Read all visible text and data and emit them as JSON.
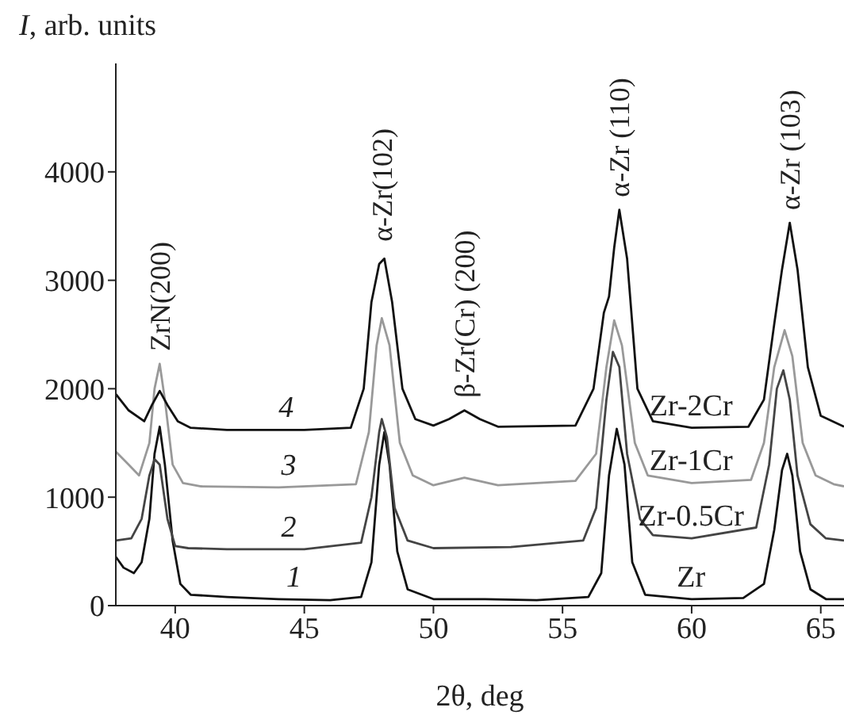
{
  "chart_data": {
    "type": "line",
    "xlabel": "2θ, deg",
    "ylabel": "I, arb. units",
    "xlim": [
      37.7,
      65.9
    ],
    "xticks": [
      40,
      45,
      50,
      55,
      60,
      65
    ],
    "ylim": [
      0,
      5000
    ],
    "yticks": [
      0,
      1000,
      2000,
      3000,
      4000
    ],
    "series": [
      {
        "name": "Zr",
        "color": "#111111",
        "x": [
          37.7,
          38.0,
          38.4,
          38.7,
          39.0,
          39.2,
          39.4,
          39.6,
          39.9,
          40.2,
          40.6,
          42,
          44,
          46,
          47.2,
          47.6,
          47.9,
          48.1,
          48.3,
          48.6,
          49.0,
          50,
          52,
          54,
          56.0,
          56.5,
          56.8,
          57.1,
          57.4,
          57.7,
          58.2,
          60,
          62,
          62.8,
          63.2,
          63.5,
          63.7,
          63.9,
          64.2,
          64.6,
          65.2,
          65.9
        ],
        "values": [
          450,
          350,
          300,
          400,
          800,
          1400,
          1650,
          1300,
          600,
          200,
          100,
          80,
          60,
          50,
          80,
          400,
          1300,
          1600,
          1300,
          500,
          150,
          60,
          60,
          50,
          80,
          300,
          1200,
          1630,
          1300,
          400,
          100,
          60,
          70,
          200,
          700,
          1250,
          1400,
          1200,
          500,
          150,
          60,
          60
        ]
      },
      {
        "name": "Zr-0.5Cr",
        "color": "#444444",
        "x": [
          37.7,
          38.3,
          38.7,
          39.0,
          39.2,
          39.4,
          39.7,
          40.0,
          40.5,
          42,
          45,
          47.2,
          47.6,
          47.9,
          48.0,
          48.2,
          48.5,
          49.0,
          50,
          53,
          55.8,
          56.3,
          56.7,
          56.95,
          57.2,
          57.5,
          58.0,
          58.5,
          60,
          62.5,
          63.0,
          63.3,
          63.55,
          63.8,
          64.1,
          64.6,
          65.2,
          65.9
        ],
        "values": [
          600,
          620,
          800,
          1200,
          1350,
          1300,
          800,
          550,
          530,
          520,
          520,
          580,
          1000,
          1600,
          1720,
          1550,
          900,
          600,
          530,
          540,
          600,
          900,
          1900,
          2340,
          2200,
          1400,
          800,
          650,
          620,
          720,
          1300,
          2000,
          2170,
          1900,
          1200,
          750,
          620,
          600
        ]
      },
      {
        "name": "Zr-1Cr",
        "color": "#999999",
        "x": [
          37.7,
          38.2,
          38.6,
          39.0,
          39.2,
          39.4,
          39.6,
          39.9,
          40.3,
          41,
          44,
          47.0,
          47.5,
          47.8,
          48.0,
          48.3,
          48.7,
          49.2,
          50,
          51.2,
          52.5,
          55.5,
          56.3,
          56.7,
          57.0,
          57.3,
          57.8,
          58.3,
          60,
          62.3,
          62.8,
          63.2,
          63.6,
          63.9,
          64.3,
          64.8,
          65.5,
          65.9
        ],
        "values": [
          1420,
          1300,
          1200,
          1500,
          2000,
          2230,
          1900,
          1300,
          1130,
          1100,
          1090,
          1120,
          1600,
          2400,
          2650,
          2400,
          1500,
          1200,
          1110,
          1180,
          1110,
          1150,
          1400,
          2200,
          2630,
          2400,
          1500,
          1200,
          1130,
          1160,
          1500,
          2200,
          2540,
          2300,
          1500,
          1200,
          1120,
          1100
        ]
      },
      {
        "name": "Zr-2Cr",
        "color": "#111111",
        "x": [
          37.7,
          38.2,
          38.8,
          39.1,
          39.4,
          39.7,
          40.1,
          40.6,
          42,
          45,
          46.8,
          47.3,
          47.6,
          47.9,
          48.1,
          48.4,
          48.8,
          49.3,
          50,
          50.6,
          51.2,
          51.8,
          52.5,
          55.5,
          56.2,
          56.6,
          56.8,
          57.0,
          57.2,
          57.5,
          57.9,
          58.5,
          60,
          62.2,
          62.8,
          63.2,
          63.5,
          63.8,
          64.1,
          64.5,
          65.0,
          65.9
        ],
        "values": [
          1950,
          1800,
          1700,
          1850,
          1980,
          1850,
          1700,
          1640,
          1620,
          1620,
          1640,
          2000,
          2800,
          3150,
          3200,
          2800,
          2000,
          1720,
          1660,
          1720,
          1800,
          1720,
          1650,
          1660,
          2000,
          2700,
          2850,
          3300,
          3650,
          3200,
          2000,
          1700,
          1640,
          1650,
          1900,
          2600,
          3100,
          3530,
          3100,
          2200,
          1750,
          1650
        ]
      }
    ],
    "annotations": [
      {
        "text": "ZrN(200)",
        "x": 39.4,
        "y": 2230
      },
      {
        "text": "α-Zr(102)",
        "x": 48.0,
        "y": 3240
      },
      {
        "text": "β-Zr(Cr) (200)",
        "x": 51.2,
        "y": 1800
      },
      {
        "text": "α-Zr (110)",
        "x": 57.2,
        "y": 3650
      },
      {
        "text": "α-Zr (103)",
        "x": 63.8,
        "y": 3530
      },
      {
        "text": "1",
        "x": 44.6,
        "y": 60
      },
      {
        "text": "2",
        "x": 44.4,
        "y": 520
      },
      {
        "text": "3",
        "x": 44.4,
        "y": 1090
      },
      {
        "text": "4",
        "x": 44.3,
        "y": 1620
      }
    ]
  }
}
